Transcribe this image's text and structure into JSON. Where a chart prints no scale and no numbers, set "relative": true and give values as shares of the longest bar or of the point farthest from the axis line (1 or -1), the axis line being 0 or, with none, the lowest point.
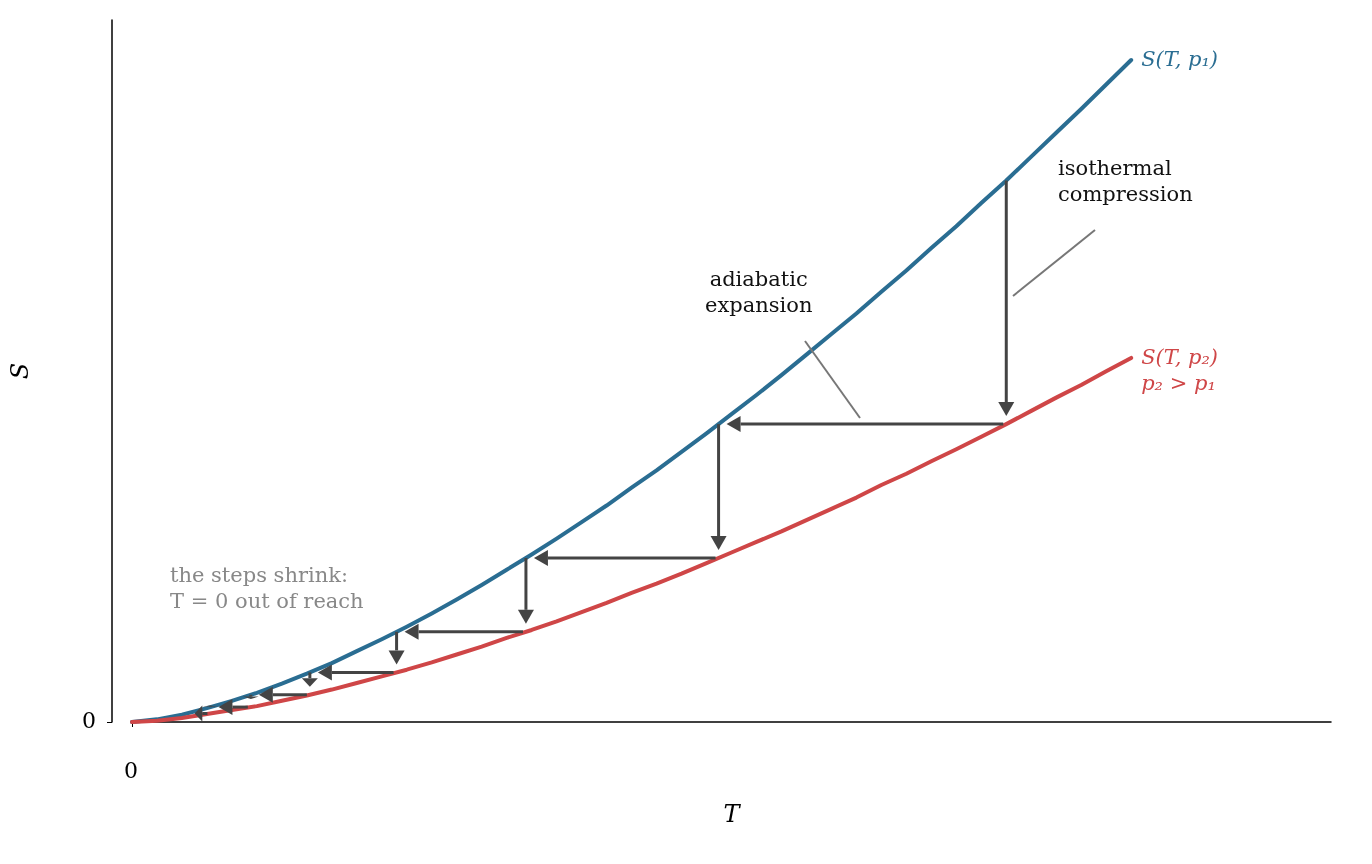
{
  "chart_data": {
    "type": "line",
    "relative": true,
    "xlabel": "T",
    "ylabel": "S",
    "categories": [
      null,
      null,
      null,
      null,
      null,
      null,
      null,
      null,
      null,
      null,
      null,
      null,
      null,
      null,
      null,
      null,
      null,
      null,
      null,
      null,
      null,
      null,
      null,
      null,
      null,
      null,
      null,
      null,
      null,
      null,
      null,
      null,
      null,
      null,
      null,
      null,
      null,
      null,
      null,
      null,
      null,
      null,
      null,
      null,
      null,
      null,
      null,
      null,
      null
    ],
    "series": [
      {
        "name": "S(T, p₁)",
        "color": "#2a6d92",
        "values": [
          0,
          0.004,
          0.011,
          0.021,
          0.032,
          0.044,
          0.058,
          0.073,
          0.089,
          0.107,
          0.125,
          0.144,
          0.164,
          0.185,
          0.207,
          0.23,
          0.253,
          0.277,
          0.302,
          0.327,
          0.354,
          0.38,
          0.408,
          0.436,
          0.465,
          0.494,
          0.524,
          0.555,
          0.586,
          0.617,
          0.65,
          0.682,
          0.716,
          0.749,
          0.784,
          0.818,
          0.854,
          0.89,
          0.926,
          0.963,
          1,
          null,
          null,
          null,
          null,
          null,
          null,
          null,
          null
        ]
      },
      {
        "name": "S(T, p₂)",
        "color": "#cf4647",
        "values": [
          0,
          0.002,
          0.006,
          0.012,
          0.018,
          0.024,
          0.032,
          0.04,
          0.049,
          0.059,
          0.069,
          0.079,
          0.09,
          0.102,
          0.114,
          0.127,
          0.139,
          0.152,
          0.166,
          0.18,
          0.195,
          0.209,
          0.224,
          0.24,
          0.256,
          0.272,
          0.288,
          0.305,
          0.322,
          0.339,
          0.358,
          0.375,
          0.394,
          0.412,
          0.431,
          0.45,
          0.47,
          0.49,
          0.509,
          0.53,
          0.55,
          null,
          null,
          null,
          null,
          null,
          null,
          null,
          null
        ]
      }
    ],
    "annotations": [
      "isothermal compression",
      "adiabatic expansion",
      "the steps shrink: T = 0 out of reach",
      "p₂ > p₁",
      "0",
      "0"
    ],
    "marker": "none",
    "line_style": "solid",
    "grid": false,
    "legend": false
  }
}
